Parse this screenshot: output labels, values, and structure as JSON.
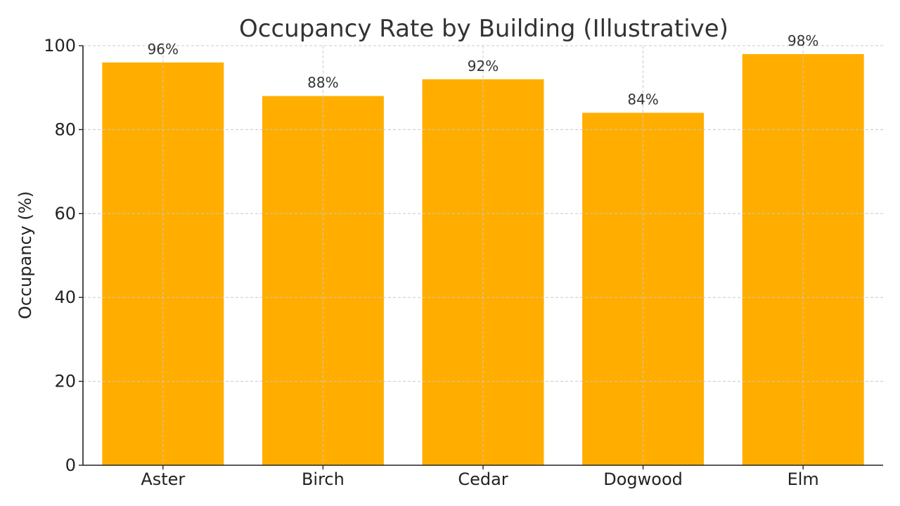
{
  "chart_data": {
    "type": "bar",
    "title": "Occupancy Rate by Building (Illustrative)",
    "xlabel": "",
    "ylabel": "Occupancy (%)",
    "categories": [
      "Aster",
      "Birch",
      "Cedar",
      "Dogwood",
      "Elm"
    ],
    "values": [
      96,
      88,
      92,
      84,
      98
    ],
    "data_labels": [
      "96%",
      "88%",
      "92%",
      "84%",
      "98%"
    ],
    "ylim": [
      0,
      100
    ],
    "yticks": [
      0,
      20,
      40,
      60,
      80,
      100
    ],
    "grid": true,
    "colors": {
      "bar": "#FFAE00",
      "grid": "#c8c8c8",
      "axis": "#222222"
    }
  }
}
